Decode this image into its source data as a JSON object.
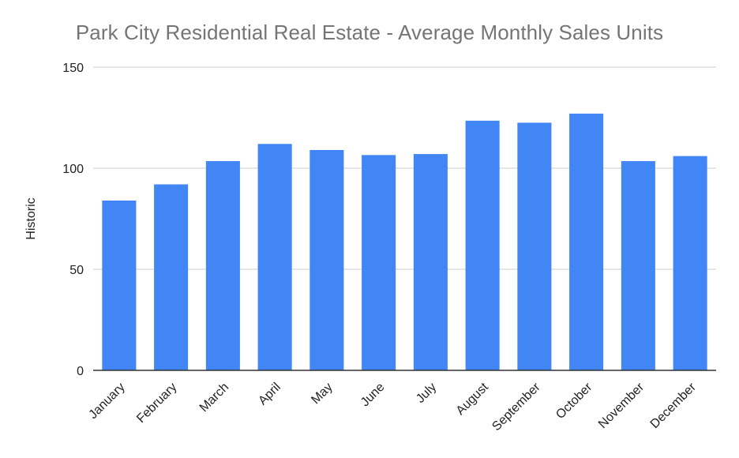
{
  "chart_data": {
    "type": "bar",
    "title": "Park City Residential Real Estate - Average Monthly Sales Units",
    "xlabel": "",
    "ylabel": "Historic",
    "categories": [
      "January",
      "February",
      "March",
      "April",
      "May",
      "June",
      "July",
      "August",
      "September",
      "October",
      "November",
      "December"
    ],
    "values": [
      84,
      92,
      103.5,
      112,
      109,
      106.5,
      107,
      123.5,
      122.5,
      127,
      103.5,
      106
    ],
    "ylim": [
      0,
      150
    ],
    "yticks": [
      0,
      50,
      100,
      150
    ],
    "grid": true,
    "legend": "none",
    "bar_color": "#4285f4",
    "grid_color": "#cccccc",
    "axis_color": "#333333"
  }
}
